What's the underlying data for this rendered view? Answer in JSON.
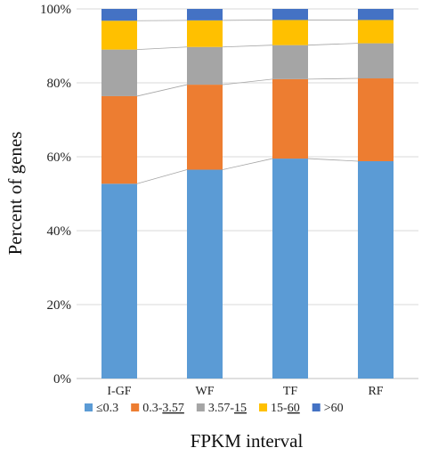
{
  "chart_data": {
    "type": "bar",
    "stacked": true,
    "percent": true,
    "categories": [
      "I-GF",
      "WF",
      "TF",
      "RF"
    ],
    "series": [
      {
        "name": "≤0.3",
        "color": "#5b9bd5",
        "values": [
          52.7,
          56.5,
          59.5,
          58.8
        ]
      },
      {
        "name": "0.3-3.57",
        "underline": "3.57",
        "color": "#ed7d31",
        "values": [
          23.7,
          23.0,
          21.5,
          22.4
        ]
      },
      {
        "name": "3.57-15",
        "underline": "15",
        "color": "#a5a5a5",
        "values": [
          12.6,
          10.2,
          9.2,
          9.5
        ]
      },
      {
        "name": "15-60",
        "underline": "60",
        "color": "#ffc000",
        "values": [
          7.8,
          7.2,
          6.8,
          6.3
        ]
      },
      {
        "name": ">60",
        "color": "#4472c4",
        "values": [
          3.2,
          3.1,
          3.0,
          3.0
        ]
      }
    ],
    "ylabel": "Percent of genes",
    "xlabel": "FPKM interval",
    "ylim": [
      0,
      100
    ],
    "yticks": [
      "0%",
      "20%",
      "40%",
      "60%",
      "80%",
      "100%"
    ],
    "series_lines": true,
    "legend_position": "bottom"
  }
}
